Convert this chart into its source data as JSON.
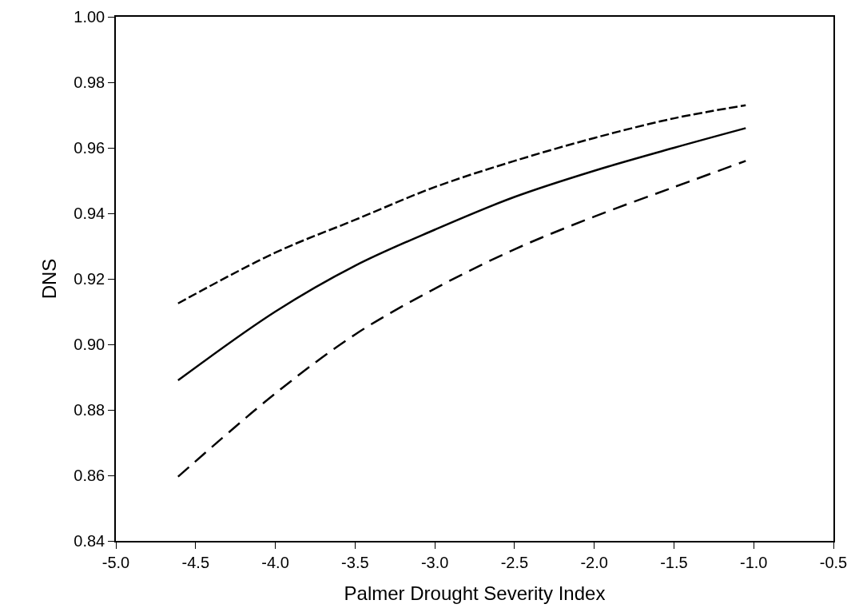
{
  "chart_data": {
    "type": "line",
    "xlabel": "Palmer Drought Severity Index",
    "ylabel": "DNS",
    "xlim": [
      -5.0,
      -0.5
    ],
    "xticks": [
      {
        "value": -5.0,
        "label": "-5.0"
      },
      {
        "value": -4.5,
        "label": "-4.5"
      },
      {
        "value": -4.0,
        "label": "-4.0"
      },
      {
        "value": -3.5,
        "label": "-3.5"
      },
      {
        "value": -3.0,
        "label": "-3.0"
      },
      {
        "value": -2.5,
        "label": "-2.5"
      },
      {
        "value": -2.0,
        "label": "-2.0"
      },
      {
        "value": -1.5,
        "label": "-1.5"
      },
      {
        "value": -1.0,
        "label": "-1.0"
      },
      {
        "value": -0.5,
        "label": "-0.5"
      }
    ],
    "ylim": [
      0.84,
      1.0
    ],
    "yticks": [
      {
        "value": 0.84,
        "label": "0.84"
      },
      {
        "value": 0.86,
        "label": "0.86"
      },
      {
        "value": 0.88,
        "label": "0.88"
      },
      {
        "value": 0.9,
        "label": "0.90"
      },
      {
        "value": 0.92,
        "label": "0.92"
      },
      {
        "value": 0.94,
        "label": "0.94"
      },
      {
        "value": 0.96,
        "label": "0.96"
      },
      {
        "value": 0.98,
        "label": "0.98"
      },
      {
        "value": 1.0,
        "label": "1.00"
      }
    ],
    "x": [
      -4.61,
      -4.0,
      -3.5,
      -3.0,
      -2.5,
      -2.0,
      -1.5,
      -1.05
    ],
    "grid": false,
    "marker": "none",
    "series": [
      {
        "color": "#000000",
        "line_style": "dashed",
        "values": [
          0.9125,
          0.928,
          0.938,
          0.948,
          0.956,
          0.963,
          0.969,
          0.973
        ]
      },
      {
        "color": "#000000",
        "line_style": "solid",
        "values": [
          0.889,
          0.91,
          0.924,
          0.935,
          0.945,
          0.953,
          0.96,
          0.966
        ]
      },
      {
        "color": "#000000",
        "line_style": "dashed",
        "values": [
          0.8596,
          0.885,
          0.903,
          0.917,
          0.929,
          0.939,
          0.948,
          0.956
        ]
      }
    ]
  }
}
